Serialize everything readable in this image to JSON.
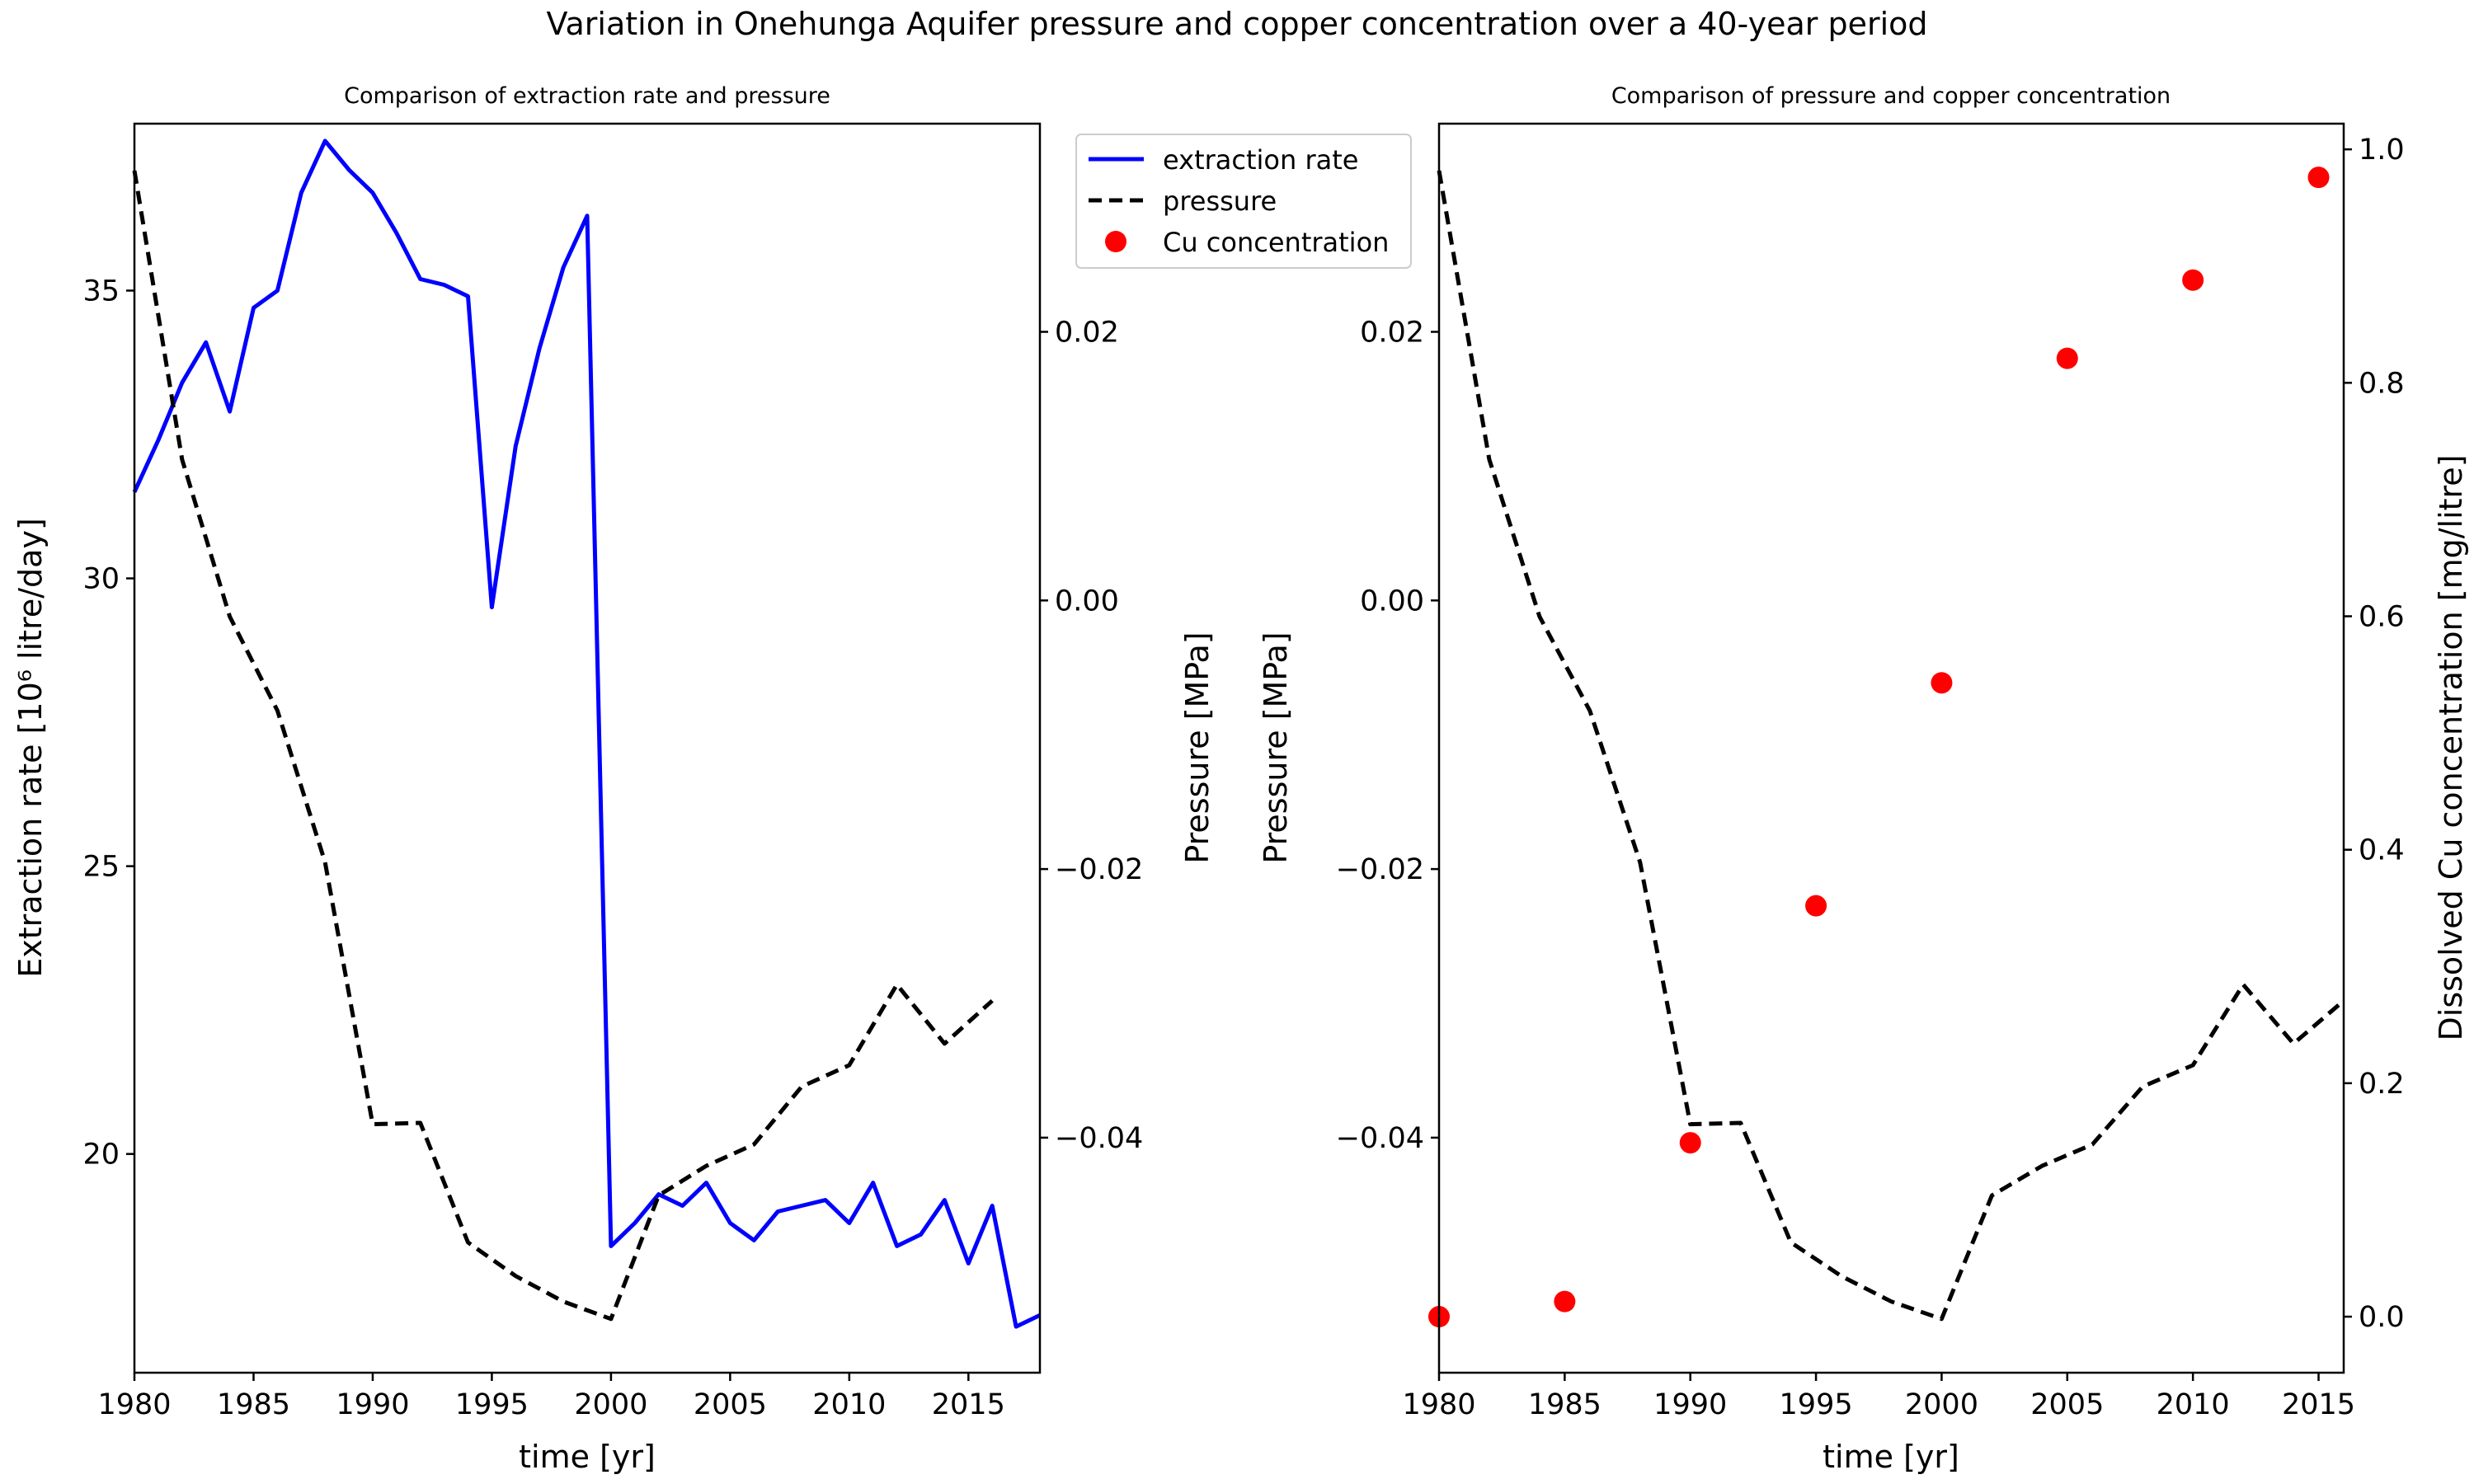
{
  "figure": {
    "title": "Variation in Onehunga Aquifer pressure and copper concentration over a 40-year period"
  },
  "chart_data": [
    {
      "type": "line",
      "title": "Comparison of extraction rate and pressure",
      "xlabel": "time [yr]",
      "ylabel_left": "Extraction rate [10⁶ litre/day]",
      "ylabel_right": "Pressure [MPa]",
      "xlim": [
        1980,
        2018
      ],
      "ylim_left": [
        16.2,
        37.9
      ],
      "ylim_right": [
        -0.0575,
        0.0355
      ],
      "xticks": [
        "1980",
        "1985",
        "1990",
        "1995",
        "2000",
        "2005",
        "2010",
        "2015"
      ],
      "yticks_left": [
        "20",
        "25",
        "30",
        "35"
      ],
      "yticks_right": [
        "0.02",
        "0.00",
        "−0.02",
        "−0.04"
      ],
      "grid": false,
      "legend": {
        "placement": "upper right, outside plot area",
        "entries": [
          {
            "label": "extraction rate",
            "style": "solid-line",
            "color": "#0000ff"
          },
          {
            "label": "pressure",
            "style": "dashed-line",
            "color": "#000000"
          },
          {
            "label": "Cu concentration",
            "style": "marker-circle",
            "color": "#ff0000"
          }
        ]
      },
      "series": [
        {
          "name": "extraction rate",
          "axis": "left",
          "color": "#0000ff",
          "x": [
            1980,
            1981,
            1982,
            1983,
            1984,
            1985,
            1986,
            1987,
            1988,
            1989,
            1990,
            1991,
            1992,
            1993,
            1994,
            1995,
            1996,
            1997,
            1998,
            1999,
            2000,
            2001,
            2002,
            2003,
            2004,
            2005,
            2006,
            2007,
            2008,
            2009,
            2010,
            2011,
            2012,
            2013,
            2014,
            2015,
            2016,
            2017,
            2018
          ],
          "y": [
            31.5,
            32.4,
            33.4,
            34.1,
            32.9,
            34.7,
            35.0,
            36.7,
            37.6,
            37.1,
            36.7,
            36.0,
            35.2,
            35.1,
            34.9,
            29.5,
            32.3,
            34.0,
            35.4,
            36.3,
            18.4,
            18.8,
            19.3,
            19.1,
            19.5,
            18.8,
            18.5,
            19.0,
            19.1,
            19.2,
            18.8,
            19.5,
            18.4,
            18.6,
            19.2,
            18.1,
            19.1,
            17.0,
            17.2
          ]
        },
        {
          "name": "pressure",
          "axis": "right",
          "color": "#000000",
          "x": [
            1980,
            1982,
            1984,
            1986,
            1988,
            1990,
            1992,
            1994,
            1996,
            1998,
            2000,
            2002,
            2004,
            2006,
            2008,
            2010,
            2012,
            2014,
            2016
          ],
          "y": [
            0.032,
            0.0105,
            -0.0012,
            -0.0082,
            -0.0195,
            -0.039,
            -0.0389,
            -0.0478,
            -0.0503,
            -0.0522,
            -0.0535,
            -0.0443,
            -0.0421,
            -0.0405,
            -0.0362,
            -0.0346,
            -0.0286,
            -0.033,
            -0.0298
          ]
        }
      ]
    },
    {
      "type": "line",
      "title": "Comparison of pressure and copper concentration",
      "xlabel": "time [yr]",
      "ylabel_left": "Pressure [MPa]",
      "ylabel_right": "Dissolved Cu concentration [mg/litre]",
      "xlim": [
        1980,
        2016
      ],
      "ylim_left": [
        -0.0575,
        0.0355
      ],
      "ylim_right": [
        -0.048,
        1.022
      ],
      "xticks": [
        "1980",
        "1985",
        "1990",
        "1995",
        "2000",
        "2005",
        "2010",
        "2015"
      ],
      "yticks_left": [
        "0.02",
        "0.00",
        "−0.02",
        "−0.04"
      ],
      "yticks_right": [
        "0.0",
        "0.2",
        "0.4",
        "0.6",
        "0.8",
        "1.0"
      ],
      "grid": false,
      "series": [
        {
          "name": "pressure",
          "axis": "left",
          "color": "#000000",
          "x": [
            1980,
            1982,
            1984,
            1986,
            1988,
            1990,
            1992,
            1994,
            1996,
            1998,
            2000,
            2002,
            2004,
            2006,
            2008,
            2010,
            2012,
            2014,
            2016
          ],
          "y": [
            0.032,
            0.0105,
            -0.0012,
            -0.0082,
            -0.0195,
            -0.039,
            -0.0389,
            -0.0478,
            -0.0503,
            -0.0522,
            -0.0535,
            -0.0443,
            -0.0421,
            -0.0405,
            -0.0362,
            -0.0346,
            -0.0286,
            -0.033,
            -0.0298
          ]
        },
        {
          "name": "Cu concentration",
          "axis": "right",
          "type": "scatter",
          "color": "#ff0000",
          "x": [
            1980,
            1985,
            1990,
            1995,
            2000,
            2005,
            2010,
            2015
          ],
          "y": [
            0.0,
            0.013,
            0.149,
            0.352,
            0.543,
            0.821,
            0.888,
            0.976
          ]
        }
      ]
    }
  ]
}
